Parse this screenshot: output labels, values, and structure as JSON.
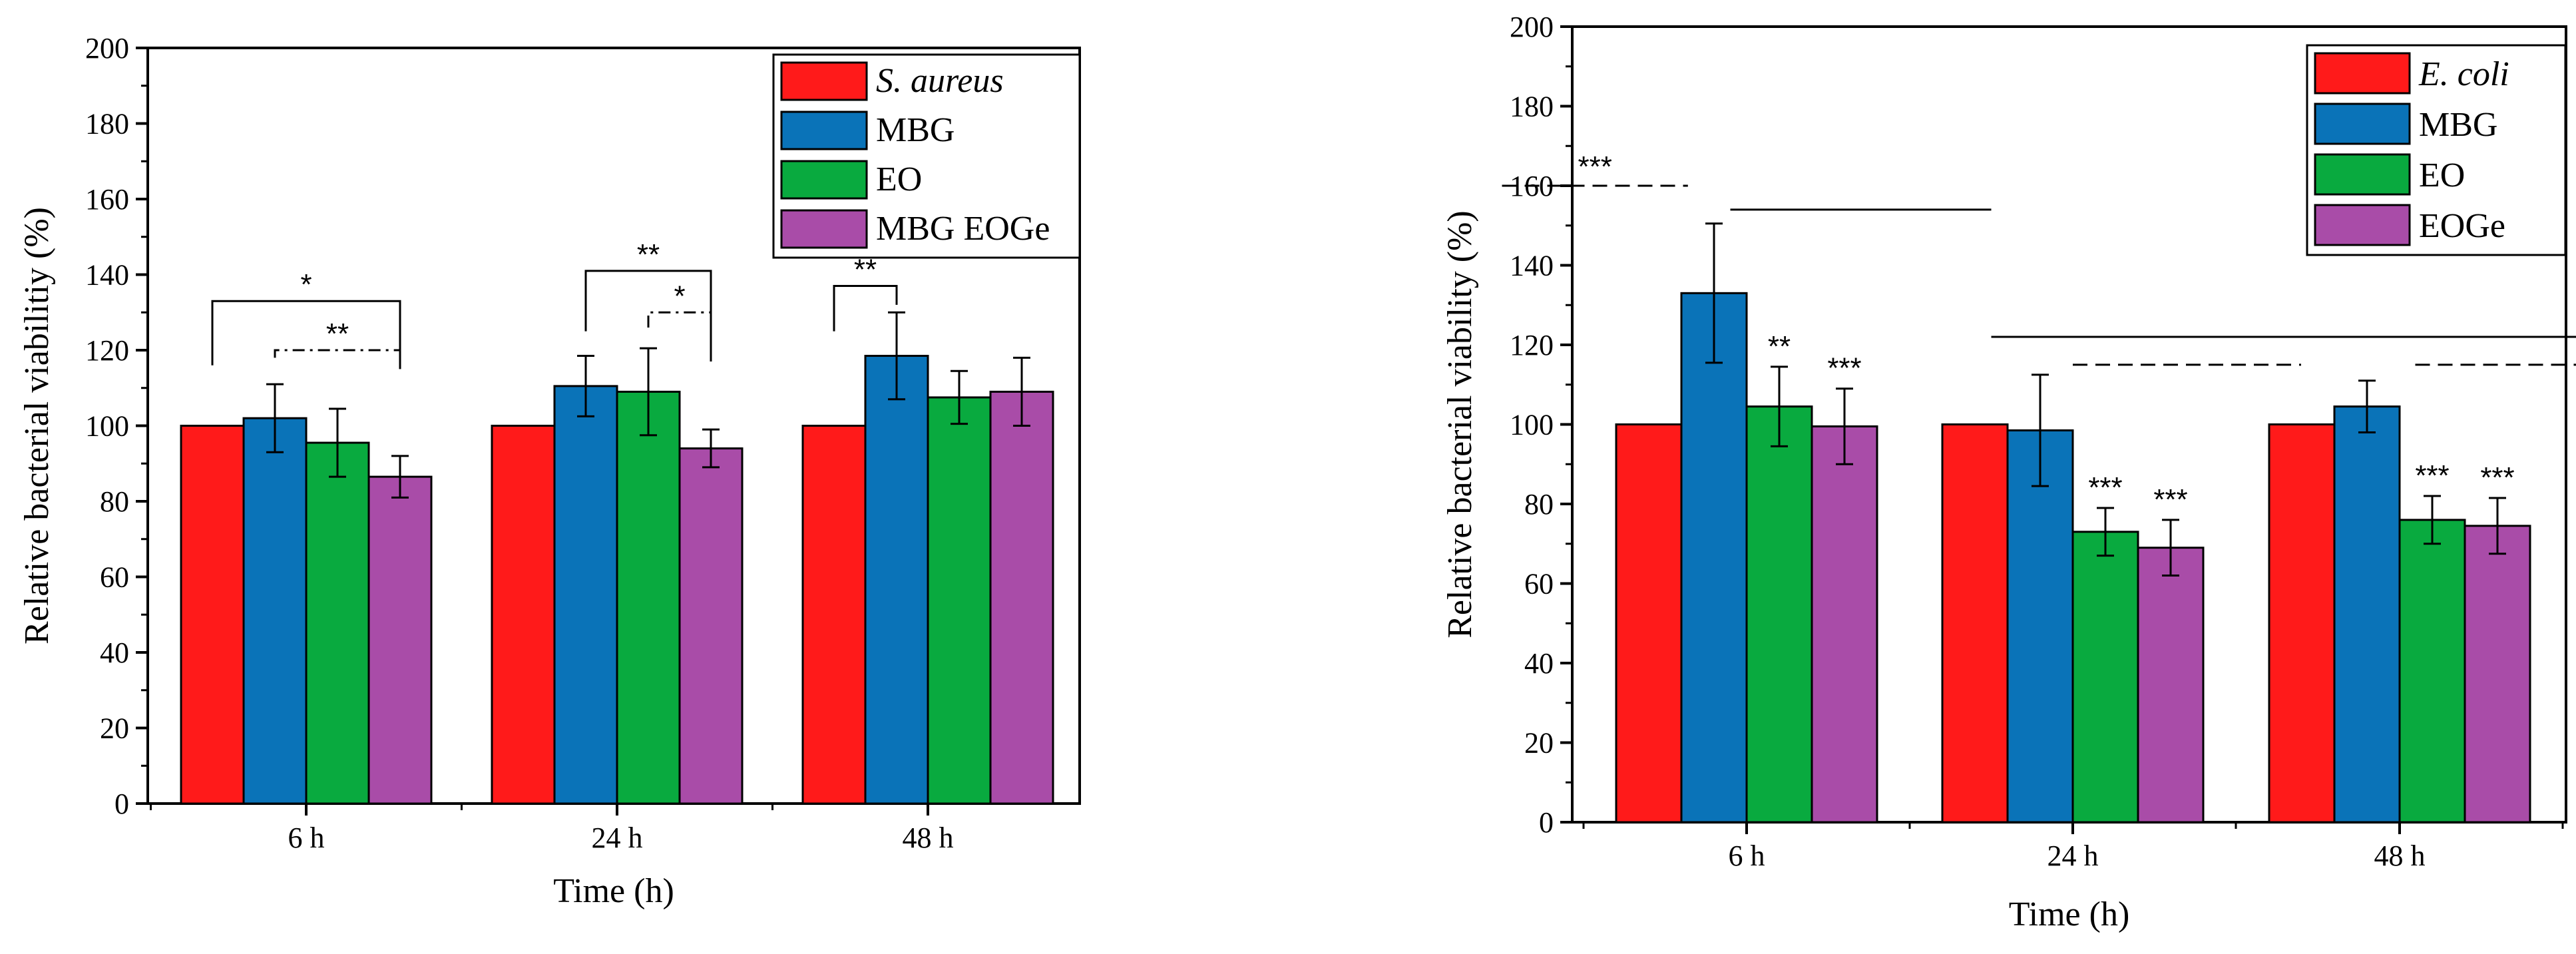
{
  "chart_data": [
    {
      "type": "bar",
      "categories": [
        "6 h",
        "24 h",
        "48 h"
      ],
      "xlabel": "Time (h)",
      "ylabel": "Relative bacterial viabilitiy (%)",
      "ylim": [
        0,
        200
      ],
      "yticks": [
        0,
        20,
        40,
        60,
        80,
        100,
        120,
        140,
        160,
        180,
        200
      ],
      "legend_position": "top-right",
      "grid": false,
      "series": [
        {
          "name": "S. aureus",
          "italic": true,
          "color": "#ff1a1a",
          "values": [
            100,
            100,
            100
          ],
          "errors": [
            0,
            0,
            0
          ]
        },
        {
          "name": "MBG",
          "color": "#0a73b8",
          "values": [
            102,
            110.5,
            118.5
          ],
          "errors": [
            9,
            8,
            11.5
          ]
        },
        {
          "name": "EO",
          "color": "#09aa3f",
          "values": [
            95.5,
            109,
            107.5
          ],
          "errors": [
            9,
            11.5,
            7
          ]
        },
        {
          "name": "MBG EOGe",
          "color": "#a94ca8",
          "values": [
            86.5,
            94,
            109
          ],
          "errors": [
            5.5,
            5,
            9
          ]
        }
      ],
      "significance": [
        {
          "label": "*",
          "style": "solid",
          "group": 0,
          "from": 0,
          "to": 3,
          "y": 133,
          "left_end": 116,
          "right_end": 115
        },
        {
          "label": "**",
          "style": "dashdot",
          "group": 0,
          "from": 1,
          "to": 3,
          "y": 120,
          "left_end": 118,
          "right_end": 115
        },
        {
          "label": "**",
          "style": "solid",
          "group": 1,
          "from": 1,
          "to": 3,
          "y": 141,
          "left_end": 125,
          "right_end": 117
        },
        {
          "label": "*",
          "style": "dashdot",
          "group": 1,
          "from": 2,
          "to": 3,
          "y": 130,
          "left_end": 126,
          "right_end": 117
        },
        {
          "label": "**",
          "style": "solid",
          "group": 2,
          "from": 0,
          "to": 1,
          "y": 137,
          "left_end": 125,
          "right_end": 132
        }
      ]
    },
    {
      "type": "bar",
      "categories": [
        "6 h",
        "24 h",
        "48 h"
      ],
      "xlabel": "Time (h)",
      "ylabel": "Relative bacterial viability (%)",
      "ylim": [
        0,
        200
      ],
      "yticks": [
        0,
        20,
        40,
        60,
        80,
        100,
        120,
        140,
        160,
        180,
        200
      ],
      "legend_position": "top-right",
      "grid": false,
      "series": [
        {
          "name": "E. coli",
          "italic": true,
          "color": "#ff1a1a",
          "values": [
            100,
            100,
            100
          ],
          "errors": [
            0,
            0,
            0
          ]
        },
        {
          "name": "MBG",
          "color": "#0a73b8",
          "values": [
            133,
            98.5,
            104.5
          ],
          "errors": [
            17.5,
            14,
            6.5
          ]
        },
        {
          "name": "EO",
          "color": "#09aa3f",
          "values": [
            104.5,
            73,
            76
          ],
          "errors": [
            10,
            6,
            6
          ]
        },
        {
          "name": "EOGe",
          "color": "#a94ca8",
          "values": [
            99.5,
            69,
            74.5
          ],
          "errors": [
            9.5,
            7,
            7
          ]
        }
      ],
      "bar_labels": [
        {
          "group": 0,
          "series": 2,
          "label": "**"
        },
        {
          "group": 0,
          "series": 3,
          "label": "***"
        },
        {
          "group": 1,
          "series": 2,
          "label": "***"
        },
        {
          "group": 1,
          "series": 3,
          "label": "***"
        },
        {
          "group": 2,
          "series": 2,
          "label": "***"
        },
        {
          "group": 2,
          "series": 3,
          "label": "***"
        }
      ],
      "reference_lines": [
        {
          "style": "dashed",
          "y": 160,
          "from_group": -0.75,
          "to_group": -0.18,
          "label": "***"
        },
        {
          "style": "solid",
          "y": 154,
          "from_group": -0.05,
          "to_group": 0.75,
          "label": ""
        },
        {
          "style": "solid",
          "y": 122,
          "from_group": 0.75,
          "to_group": 1.75,
          "label": ""
        },
        {
          "style": "dashed",
          "y": 115,
          "from_group": 1.0,
          "to_group": 1.7,
          "label": ""
        },
        {
          "style": "solid",
          "y": 122,
          "from_group": 1.75,
          "to_group": 2.75,
          "label": ""
        },
        {
          "style": "dashed",
          "y": 115,
          "from_group": 2.05,
          "to_group": 2.75,
          "label": ""
        }
      ]
    }
  ]
}
